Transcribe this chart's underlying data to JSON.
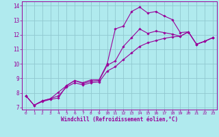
{
  "background_color": "#b0eaee",
  "grid_color": "#90c8d0",
  "line_color": "#990099",
  "marker_color": "#990099",
  "xlabel": "Windchill (Refroidissement éolien,°C)",
  "xlim": [
    -0.5,
    23.5
  ],
  "ylim": [
    6.85,
    14.3
  ],
  "yticks": [
    7,
    8,
    9,
    10,
    11,
    12,
    13,
    14
  ],
  "xticks": [
    0,
    1,
    2,
    3,
    4,
    5,
    6,
    7,
    8,
    9,
    10,
    11,
    12,
    13,
    14,
    15,
    16,
    17,
    18,
    19,
    20,
    21,
    22,
    23
  ],
  "series": [
    {
      "x": [
        0,
        1,
        2,
        3,
        4,
        5,
        6,
        7,
        8,
        9,
        10,
        11,
        12,
        13,
        14,
        15,
        16,
        17,
        18,
        19,
        20,
        21,
        22,
        23
      ],
      "y": [
        7.8,
        7.15,
        7.4,
        7.55,
        7.65,
        8.5,
        8.85,
        8.7,
        8.9,
        8.9,
        10.0,
        12.4,
        12.6,
        13.6,
        13.9,
        13.5,
        13.6,
        13.3,
        13.05,
        12.15,
        12.2,
        11.35,
        11.55,
        11.8
      ]
    },
    {
      "x": [
        0,
        1,
        2,
        3,
        4,
        5,
        6,
        7,
        8,
        9,
        10,
        11,
        12,
        13,
        14,
        15,
        16,
        17,
        18,
        19,
        20,
        21,
        22,
        23
      ],
      "y": [
        7.8,
        7.15,
        7.45,
        7.6,
        8.05,
        8.5,
        8.85,
        8.65,
        8.8,
        8.85,
        9.9,
        10.2,
        11.2,
        11.8,
        12.4,
        12.1,
        12.25,
        12.15,
        12.05,
        11.9,
        12.2,
        11.35,
        11.55,
        11.8
      ]
    },
    {
      "x": [
        0,
        1,
        2,
        3,
        4,
        5,
        6,
        7,
        8,
        9,
        10,
        11,
        12,
        13,
        14,
        15,
        16,
        17,
        18,
        19,
        20,
        21,
        22,
        23
      ],
      "y": [
        7.8,
        7.15,
        7.45,
        7.6,
        7.8,
        8.4,
        8.7,
        8.55,
        8.7,
        8.75,
        9.5,
        9.8,
        10.3,
        10.75,
        11.2,
        11.45,
        11.6,
        11.75,
        11.85,
        11.9,
        12.2,
        11.35,
        11.55,
        11.8
      ]
    }
  ]
}
